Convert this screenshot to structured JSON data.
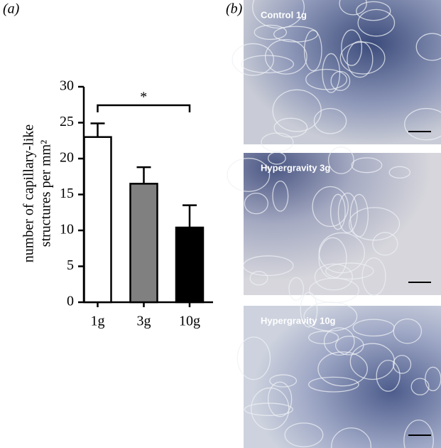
{
  "panel_labels": [
    "(a)",
    "(b)"
  ],
  "chart_data": {
    "type": "bar",
    "categories": [
      "1g",
      "3g",
      "10g"
    ],
    "values": [
      23,
      16.5,
      10.4
    ],
    "errors": [
      1.9,
      2.3,
      3.1
    ],
    "colors": [
      "#ffffff",
      "#808080",
      "#000000"
    ],
    "ylim": [
      0,
      30
    ],
    "yticks": [
      0,
      5,
      10,
      15,
      20,
      25,
      30
    ],
    "ylabel": [
      "number of capillary-like",
      "structures per mm²"
    ],
    "significance": "*"
  },
  "images": [
    {
      "caption": "Control 1g"
    },
    {
      "caption": "Hypergravity 3g"
    },
    {
      "caption": "Hypergravity 10g"
    }
  ]
}
